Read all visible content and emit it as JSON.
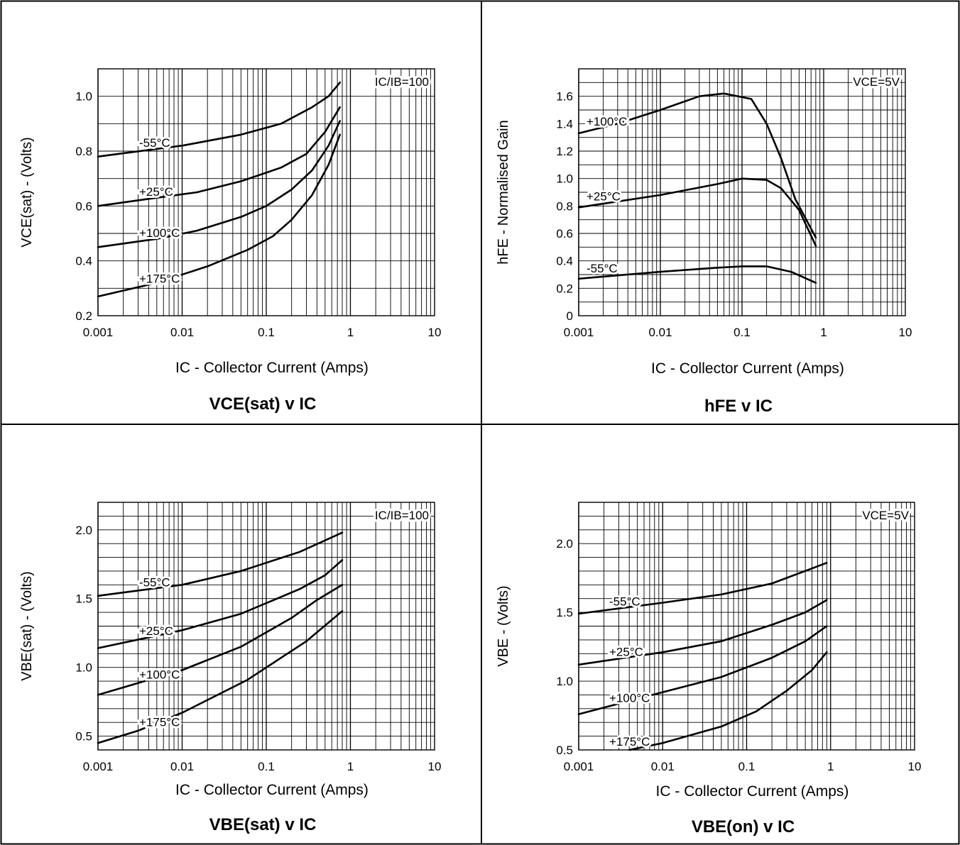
{
  "chart_data": [
    {
      "type": "line",
      "title": "VCE(sat) v IC",
      "xlabel": "IC - Collector Current (Amps)",
      "ylabel": "VCE(sat) - (Volts)",
      "xscale": "log",
      "xlim": [
        0.001,
        10
      ],
      "ylim": [
        0.2,
        1.1
      ],
      "xticks": [
        0.001,
        0.01,
        0.1,
        1,
        10
      ],
      "xtick_labels": [
        "0.001",
        "0.01",
        "0.1",
        "1",
        "10"
      ],
      "yticks": [
        0.2,
        0.4,
        0.6,
        0.8,
        1.0
      ],
      "ytick_labels": [
        "0.2",
        "0.4",
        "0.6",
        "0.8",
        "1.0"
      ],
      "grid": true,
      "annotation": "IC/IB=100",
      "series": [
        {
          "name": "-55°C",
          "x": [
            0.001,
            0.01,
            0.05,
            0.15,
            0.35,
            0.55,
            0.75
          ],
          "y": [
            0.78,
            0.82,
            0.86,
            0.9,
            0.96,
            1.0,
            1.05
          ]
        },
        {
          "name": "+25°C",
          "x": [
            0.001,
            0.005,
            0.015,
            0.05,
            0.15,
            0.3,
            0.5,
            0.75
          ],
          "y": [
            0.6,
            0.63,
            0.65,
            0.69,
            0.74,
            0.79,
            0.87,
            0.96
          ]
        },
        {
          "name": "+100°C",
          "x": [
            0.001,
            0.005,
            0.015,
            0.05,
            0.1,
            0.2,
            0.35,
            0.55,
            0.75
          ],
          "y": [
            0.45,
            0.48,
            0.51,
            0.56,
            0.6,
            0.66,
            0.73,
            0.82,
            0.91
          ]
        },
        {
          "name": "+175°C",
          "x": [
            0.001,
            0.005,
            0.02,
            0.06,
            0.12,
            0.2,
            0.35,
            0.55,
            0.75
          ],
          "y": [
            0.27,
            0.32,
            0.38,
            0.44,
            0.49,
            0.55,
            0.64,
            0.75,
            0.86
          ]
        }
      ]
    },
    {
      "type": "line",
      "title": "hFE v IC",
      "xlabel": "IC - Collector Current (Amps)",
      "ylabel": "hFE - Normalised Gain",
      "xscale": "log",
      "xlim": [
        0.001,
        10
      ],
      "ylim": [
        0,
        1.8
      ],
      "xticks": [
        0.001,
        0.01,
        0.1,
        1,
        10
      ],
      "xtick_labels": [
        "0.001",
        "0.01",
        "0.1",
        "1",
        "10"
      ],
      "yticks": [
        0,
        0.2,
        0.4,
        0.6,
        0.8,
        1.0,
        1.2,
        1.4,
        1.6
      ],
      "ytick_labels": [
        "0",
        "0.2",
        "0.4",
        "0.6",
        "0.8",
        "1.0",
        "1.2",
        "1.4",
        "1.6"
      ],
      "grid": true,
      "annotation": "VCE=5V",
      "series": [
        {
          "name": "+100°C",
          "x": [
            0.001,
            0.003,
            0.01,
            0.03,
            0.06,
            0.13,
            0.2,
            0.3,
            0.45,
            0.8
          ],
          "y": [
            1.33,
            1.4,
            1.5,
            1.6,
            1.62,
            1.58,
            1.4,
            1.15,
            0.85,
            0.57
          ]
        },
        {
          "name": "+25°C",
          "x": [
            0.001,
            0.01,
            0.05,
            0.1,
            0.2,
            0.3,
            0.5,
            0.8
          ],
          "y": [
            0.79,
            0.88,
            0.96,
            1.0,
            0.99,
            0.93,
            0.77,
            0.51
          ]
        },
        {
          "name": "-55°C",
          "x": [
            0.001,
            0.01,
            0.05,
            0.1,
            0.2,
            0.4,
            0.8
          ],
          "y": [
            0.27,
            0.32,
            0.35,
            0.36,
            0.36,
            0.32,
            0.24
          ]
        }
      ]
    },
    {
      "type": "line",
      "title": "VBE(sat) v IC",
      "xlabel": "IC - Collector Current (Amps)",
      "ylabel": "VBE(sat) - (Volts)",
      "xscale": "log",
      "xlim": [
        0.001,
        10
      ],
      "ylim": [
        0.4,
        2.2
      ],
      "xticks": [
        0.001,
        0.01,
        0.1,
        1,
        10
      ],
      "xtick_labels": [
        "0.001",
        "0.01",
        "0.1",
        "1",
        "10"
      ],
      "yticks": [
        0.5,
        1.0,
        1.5,
        2.0
      ],
      "ytick_labels": [
        "0.5",
        "1.0",
        "1.5",
        "2.0"
      ],
      "grid": true,
      "annotation": "IC/IB=100",
      "series": [
        {
          "name": "-55°C",
          "x": [
            0.001,
            0.01,
            0.05,
            0.25,
            0.8
          ],
          "y": [
            1.52,
            1.6,
            1.7,
            1.84,
            1.98
          ]
        },
        {
          "name": "+25°C",
          "x": [
            0.001,
            0.01,
            0.05,
            0.25,
            0.5,
            0.8
          ],
          "y": [
            1.14,
            1.27,
            1.39,
            1.57,
            1.67,
            1.78
          ]
        },
        {
          "name": "+100°C",
          "x": [
            0.001,
            0.01,
            0.05,
            0.2,
            0.4,
            0.8
          ],
          "y": [
            0.8,
            0.98,
            1.15,
            1.36,
            1.49,
            1.6
          ]
        },
        {
          "name": "+175°C",
          "x": [
            0.001,
            0.003,
            0.01,
            0.06,
            0.15,
            0.3,
            0.8
          ],
          "y": [
            0.45,
            0.54,
            0.67,
            0.91,
            1.07,
            1.19,
            1.41
          ]
        }
      ]
    },
    {
      "type": "line",
      "title": "VBE(on) v IC",
      "xlabel": "IC - Collector Current (Amps)",
      "ylabel": "VBE - (Volts)",
      "xscale": "log",
      "xlim": [
        0.001,
        10
      ],
      "ylim": [
        0.5,
        2.3
      ],
      "xticks": [
        0.001,
        0.01,
        0.1,
        1,
        10
      ],
      "xtick_labels": [
        "0.001",
        "0.01",
        "0.1",
        "1",
        "10"
      ],
      "yticks": [
        0.5,
        1.0,
        1.5,
        2.0
      ],
      "ytick_labels": [
        "0.5",
        "1.0",
        "1.5",
        "2.0"
      ],
      "grid": true,
      "annotation": "VCE=5V",
      "series": [
        {
          "name": "-55°C",
          "x": [
            0.001,
            0.01,
            0.05,
            0.2,
            0.9
          ],
          "y": [
            1.49,
            1.57,
            1.63,
            1.71,
            1.86
          ]
        },
        {
          "name": "+25°C",
          "x": [
            0.001,
            0.01,
            0.05,
            0.2,
            0.5,
            0.9
          ],
          "y": [
            1.12,
            1.21,
            1.29,
            1.41,
            1.5,
            1.59
          ]
        },
        {
          "name": "+100°C",
          "x": [
            0.001,
            0.01,
            0.05,
            0.2,
            0.5,
            0.9
          ],
          "y": [
            0.76,
            0.92,
            1.03,
            1.17,
            1.29,
            1.4
          ]
        },
        {
          "name": "+175°C",
          "x": [
            0.004,
            0.01,
            0.05,
            0.13,
            0.3,
            0.6,
            0.9
          ],
          "y": [
            0.5,
            0.55,
            0.67,
            0.78,
            0.93,
            1.08,
            1.21
          ]
        }
      ]
    }
  ]
}
